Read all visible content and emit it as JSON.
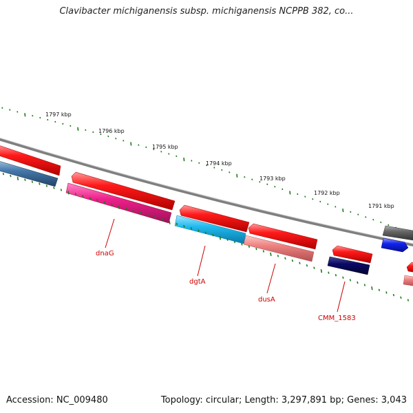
{
  "title": "Clavibacter michiganensis subsp. michiganensis NCPPB 382, co...",
  "footer": {
    "accession": "Accession: NC_009480",
    "summary": "Topology: circular; Length: 3,297,891 bp; Genes: 3,043"
  },
  "colors": {
    "backbone": "#8a8a8a",
    "tick": "#1a7a1a",
    "label": "#cc0000",
    "red": "#ee1111",
    "pink": "#ee2288",
    "cyan": "#22bbee",
    "salmon": "#ee8888",
    "navy": "#0a0a66",
    "steel": "#4477aa",
    "blue": "#1122ee",
    "gray": "#666666"
  },
  "scale": {
    "kbp_labels": [
      "1797 kbp",
      "1796 kbp",
      "1795 kbp",
      "1794 kbp",
      "1793 kbp",
      "1792 kbp",
      "1791 kbp"
    ]
  },
  "labels": [
    "dnaG",
    "dgtA",
    "dusA",
    "CMM_1583"
  ]
}
